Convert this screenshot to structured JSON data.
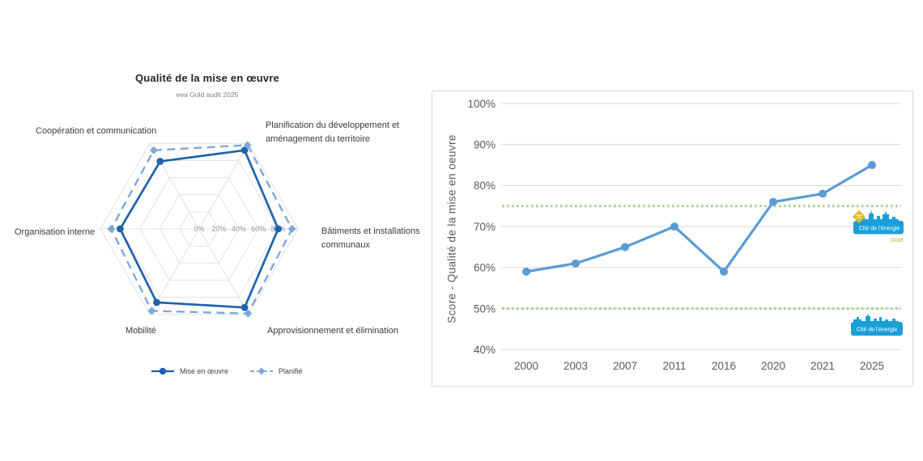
{
  "chart_data": [
    {
      "type": "radar",
      "title": "Qualité de la mise en œuvre",
      "subtitle": "eea Gold audit 2025",
      "categories": [
        "Planification du développement et aménagement du territoire",
        "Bâtiments et installations communaux",
        "Approvisionnement et élimination",
        "Mobilité",
        "Organisation interne",
        "Coopération et communication"
      ],
      "axis_ticks": [
        "0%",
        "20%",
        "40%",
        "60%",
        "80%"
      ],
      "rmax": 100,
      "grid_color": "#e2e2e2",
      "tick_color": "#8c8c8c",
      "series": [
        {
          "name": "Mise en œuvre",
          "style": "solid",
          "marker": "circle",
          "color": "#1e63ae",
          "values": [
            92,
            80,
            92,
            86,
            80,
            79
          ]
        },
        {
          "name": "Planifié",
          "style": "dashed",
          "marker": "diamond",
          "color": "#7fa8d8",
          "values": [
            98,
            94,
            99,
            96,
            89,
            92
          ]
        }
      ],
      "legend_position": "bottom"
    },
    {
      "type": "line",
      "ylabel": "Score - Qualité de la mise en oeuvre",
      "categories": [
        "2000",
        "2003",
        "2007",
        "2011",
        "2016",
        "2020",
        "2021",
        "2025"
      ],
      "series": [
        {
          "name": "Score",
          "color": "#5b9bd5",
          "values": [
            59,
            61,
            65,
            70,
            59,
            76,
            78,
            85
          ]
        }
      ],
      "ylim": [
        40,
        100
      ],
      "yticks": [
        "100%",
        "90%",
        "80%",
        "70%",
        "60%",
        "50%",
        "40%"
      ],
      "grid_color": "#d9d9d9",
      "axis_text_color": "#595959",
      "reference_lines": [
        {
          "value": 75,
          "color": "#a9d08e",
          "style": "dotted"
        },
        {
          "value": 50,
          "color": "#a9d08e",
          "style": "dotted"
        }
      ],
      "grid": true
    }
  ],
  "radar_labels": {
    "planification_line1": "Planification du développement et",
    "planification_line2": "aménagement du territoire",
    "batiments_line1": "Bâtiments et installations",
    "batiments_line2": "communaux",
    "approvisionnement": "Approvisionnement et élimination",
    "mobilite": "Mobilité",
    "organisation": "Organisation interne",
    "cooperation": "Coopération et communication"
  },
  "logos": {
    "gold": {
      "text": "Cité de l'énergie",
      "tier": "Gold",
      "banner_color": "#1b9fd8",
      "badge_color": "#d9bd2a",
      "tier_color": "#c6a42d"
    },
    "standard": {
      "text": "Cité de l'énergie",
      "banner_color": "#1b9fd8"
    }
  }
}
